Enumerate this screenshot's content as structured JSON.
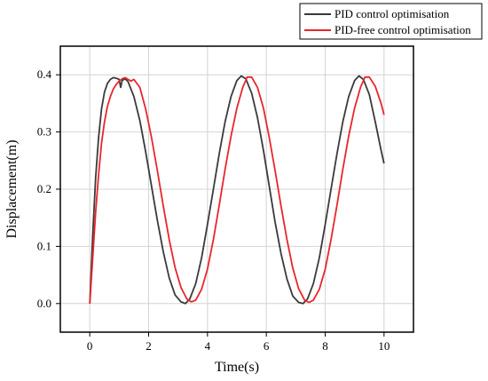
{
  "chart_data": {
    "type": "line",
    "title": "",
    "xlabel": "Time(s)",
    "ylabel": "Displacement(m)",
    "xlim": [
      -1,
      11
    ],
    "ylim": [
      -0.05,
      0.45
    ],
    "xticks": [
      0,
      2,
      4,
      6,
      8,
      10
    ],
    "yticks": [
      0.0,
      0.1,
      0.2,
      0.3,
      0.4
    ],
    "xtick_labels": [
      "0",
      "2",
      "4",
      "6",
      "8",
      "10"
    ],
    "ytick_labels": [
      "0.0",
      "0.1",
      "0.2",
      "0.3",
      "0.4"
    ],
    "grid": true,
    "legend_position": "top-right-outside",
    "series": [
      {
        "name": "PID control optimisation",
        "color": "#3a3a3a",
        "x": [
          0,
          0.1,
          0.2,
          0.3,
          0.4,
          0.5,
          0.6,
          0.7,
          0.8,
          0.9,
          1.0,
          1.05,
          1.1,
          1.2,
          1.3,
          1.5,
          1.7,
          1.9,
          2.1,
          2.3,
          2.5,
          2.7,
          2.9,
          3.1,
          3.25,
          3.4,
          3.6,
          3.8,
          4.0,
          4.2,
          4.4,
          4.6,
          4.8,
          5.0,
          5.15,
          5.3,
          5.5,
          5.7,
          5.9,
          6.1,
          6.3,
          6.5,
          6.7,
          6.9,
          7.1,
          7.25,
          7.4,
          7.6,
          7.8,
          8.0,
          8.2,
          8.4,
          8.6,
          8.8,
          9.0,
          9.15,
          9.3,
          9.5,
          9.7,
          9.9,
          10.0
        ],
        "y": [
          0.0,
          0.12,
          0.22,
          0.29,
          0.34,
          0.37,
          0.385,
          0.392,
          0.395,
          0.394,
          0.392,
          0.378,
          0.39,
          0.393,
          0.388,
          0.362,
          0.32,
          0.265,
          0.205,
          0.145,
          0.09,
          0.045,
          0.015,
          0.003,
          0.0,
          0.008,
          0.035,
          0.08,
          0.138,
          0.2,
          0.262,
          0.318,
          0.362,
          0.39,
          0.398,
          0.393,
          0.368,
          0.325,
          0.268,
          0.205,
          0.142,
          0.087,
          0.043,
          0.013,
          0.002,
          0.0,
          0.008,
          0.035,
          0.08,
          0.138,
          0.2,
          0.262,
          0.318,
          0.362,
          0.39,
          0.398,
          0.392,
          0.365,
          0.318,
          0.268,
          0.245
        ]
      },
      {
        "name": "PID-free control optimisation",
        "color": "#e8262b",
        "x": [
          0,
          0.1,
          0.2,
          0.3,
          0.4,
          0.5,
          0.6,
          0.7,
          0.8,
          0.9,
          1.0,
          1.1,
          1.2,
          1.3,
          1.4,
          1.5,
          1.7,
          1.9,
          2.1,
          2.3,
          2.5,
          2.7,
          2.9,
          3.1,
          3.3,
          3.45,
          3.6,
          3.8,
          4.0,
          4.2,
          4.4,
          4.6,
          4.8,
          5.0,
          5.2,
          5.35,
          5.5,
          5.7,
          5.9,
          6.1,
          6.3,
          6.5,
          6.7,
          6.9,
          7.1,
          7.3,
          7.45,
          7.6,
          7.8,
          8.0,
          8.2,
          8.4,
          8.6,
          8.8,
          9.0,
          9.2,
          9.35,
          9.5,
          9.7,
          9.9,
          10.0
        ],
        "y": [
          0.0,
          0.08,
          0.16,
          0.225,
          0.28,
          0.318,
          0.345,
          0.362,
          0.375,
          0.383,
          0.389,
          0.393,
          0.395,
          0.392,
          0.389,
          0.392,
          0.378,
          0.34,
          0.29,
          0.232,
          0.17,
          0.112,
          0.063,
          0.028,
          0.008,
          0.003,
          0.006,
          0.025,
          0.06,
          0.112,
          0.172,
          0.235,
          0.293,
          0.342,
          0.378,
          0.396,
          0.396,
          0.378,
          0.342,
          0.29,
          0.232,
          0.17,
          0.112,
          0.062,
          0.026,
          0.006,
          0.002,
          0.006,
          0.025,
          0.06,
          0.112,
          0.172,
          0.235,
          0.293,
          0.342,
          0.378,
          0.396,
          0.396,
          0.38,
          0.35,
          0.33
        ]
      }
    ]
  }
}
